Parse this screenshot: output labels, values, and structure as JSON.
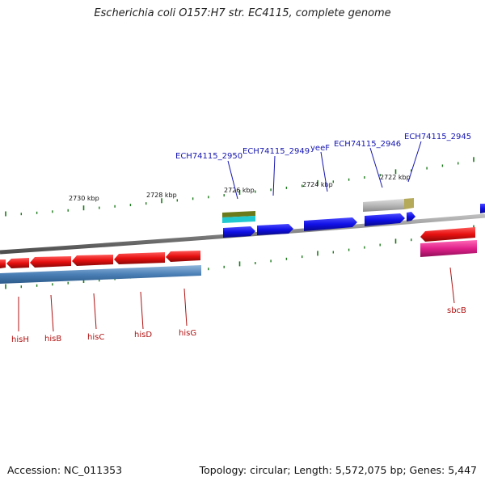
{
  "title": "Escherichia coli O157:H7 str. EC4115, complete genome",
  "accession": "Accession: NC_011353",
  "topology": "Topology: circular; Length: 5,572,075 bp; Genes: 5,447",
  "scale_labels": [
    "2730 kbp",
    "2728 kbp",
    "2726 kbp",
    "2724 kbp",
    "2722 kbp"
  ],
  "top_genes": [
    "ECH74115_2950",
    "ECH74115_2949",
    "yeeF",
    "ECH74115_2946",
    "ECH74115_2945"
  ],
  "bottom_genes": [
    "hisH",
    "hisB",
    "hisC",
    "hisD",
    "hisG",
    "sbcB"
  ],
  "colors": {
    "forward_cds": "#1010e6",
    "reverse_cds": "#e61010",
    "backbone": "#808080",
    "tick": "#1a7a1a",
    "rna_blue": "#4a7fb5",
    "magenta": "#e0208a",
    "olive": "#6b7a1a",
    "cyan": "#20c8d0",
    "grey_feature": "#b8b8b8",
    "khaki": "#b5a95a"
  }
}
